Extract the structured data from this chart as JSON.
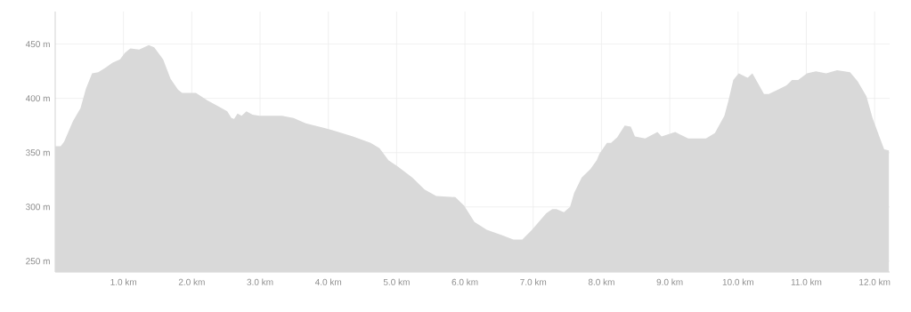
{
  "chart_data": {
    "type": "area",
    "x": [
      0,
      0.08,
      0.13,
      0.26,
      0.37,
      0.45,
      0.54,
      0.63,
      0.73,
      0.84,
      0.95,
      1.02,
      1.1,
      1.23,
      1.37,
      1.45,
      1.58,
      1.69,
      1.8,
      1.86,
      2.06,
      2.23,
      2.41,
      2.52,
      2.58,
      2.62,
      2.67,
      2.73,
      2.8,
      2.89,
      2.99,
      3.32,
      3.49,
      3.67,
      3.93,
      4.04,
      4.36,
      4.62,
      4.75,
      4.88,
      5.02,
      5.23,
      5.41,
      5.58,
      5.86,
      5.99,
      6.14,
      6.32,
      6.54,
      6.71,
      6.84,
      6.97,
      7.19,
      7.28,
      7.34,
      7.45,
      7.54,
      7.6,
      7.71,
      7.84,
      7.93,
      7.97,
      8.08,
      8.14,
      8.23,
      8.34,
      8.43,
      8.49,
      8.64,
      8.82,
      8.88,
      9.08,
      9.27,
      9.53,
      9.66,
      9.8,
      9.86,
      9.93,
      10.01,
      10.14,
      10.21,
      10.3,
      10.38,
      10.45,
      10.58,
      10.71,
      10.79,
      10.88,
      11.01,
      11.14,
      11.29,
      11.45,
      11.64,
      11.75,
      11.88,
      11.97,
      12.08,
      12.14,
      12.21
    ],
    "series": [
      {
        "color": "#d9d9d9",
        "values": [
          356,
          356,
          360,
          379,
          391,
          409,
          423,
          424,
          428,
          433,
          436,
          442,
          446,
          445,
          449,
          447,
          436,
          418,
          408,
          405,
          405,
          398,
          392,
          388,
          382,
          381,
          386,
          384,
          388,
          385,
          384,
          384,
          382,
          377,
          373,
          371,
          365,
          359,
          354,
          343,
          337,
          327,
          316,
          310,
          309,
          301,
          286,
          279,
          274,
          270,
          270,
          278,
          294,
          298,
          298,
          295,
          300,
          313,
          327,
          335,
          343,
          349,
          359,
          359,
          364,
          375,
          374,
          365,
          363,
          369,
          365,
          369,
          363,
          363,
          368,
          384,
          398,
          417,
          423,
          419,
          423,
          413,
          404,
          404,
          408,
          412,
          417,
          417,
          423,
          425,
          423,
          426,
          424,
          416,
          402,
          382,
          363,
          353,
          352
        ]
      }
    ],
    "xlim": [
      0,
      12.22
    ],
    "ylim": [
      240,
      480
    ],
    "xticks": [
      {
        "value": 1,
        "label": "1.0 km"
      },
      {
        "value": 2,
        "label": "2.0 km"
      },
      {
        "value": 3,
        "label": "3.0 km"
      },
      {
        "value": 4,
        "label": "4.0 km"
      },
      {
        "value": 5,
        "label": "5.0 km"
      },
      {
        "value": 6,
        "label": "6.0 km"
      },
      {
        "value": 7,
        "label": "7.0 km"
      },
      {
        "value": 8,
        "label": "8.0 km"
      },
      {
        "value": 9,
        "label": "9.0 km"
      },
      {
        "value": 10,
        "label": "10.0 km"
      },
      {
        "value": 11,
        "label": "11.0 km"
      },
      {
        "value": 12,
        "label": "12.0 km"
      }
    ],
    "yticks": [
      {
        "value": 250,
        "label": "250 m"
      },
      {
        "value": 300,
        "label": "300 m"
      },
      {
        "value": 350,
        "label": "350 m"
      },
      {
        "value": 400,
        "label": "400 m"
      },
      {
        "value": 450,
        "label": "450 m"
      }
    ],
    "grid": true
  }
}
